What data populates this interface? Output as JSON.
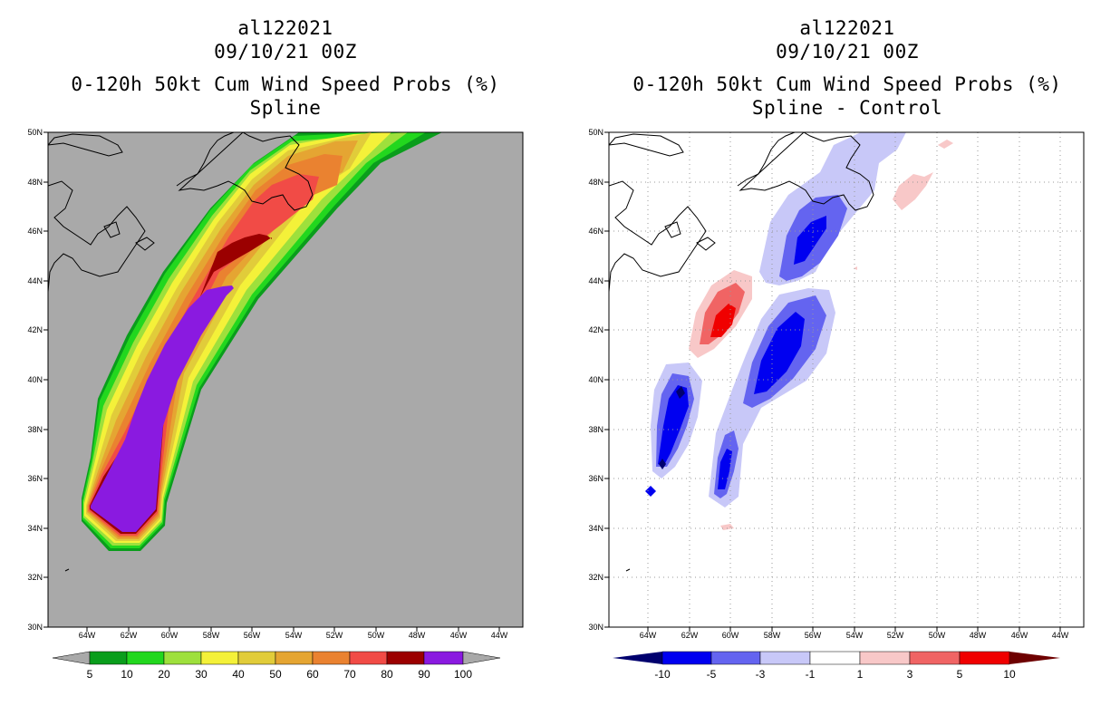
{
  "left_panel": {
    "title_lines": [
      "al122021",
      "09/10/21 00Z",
      "0-120h 50kt Cum Wind Speed Probs (%)",
      "Spline"
    ],
    "colorbar": {
      "labels": [
        "5",
        "10",
        "20",
        "30",
        "40",
        "50",
        "60",
        "70",
        "80",
        "90",
        "100"
      ],
      "colors": [
        "#a9a9a9",
        "#0a9d1c",
        "#22d71e",
        "#9ee03c",
        "#f4f139",
        "#e1cc3a",
        "#e5a532",
        "#ea8230",
        "#f14b46",
        "#9b0000",
        "#8a1ae0",
        "#a9a9a9"
      ]
    }
  },
  "right_panel": {
    "title_lines": [
      "al122021",
      "09/10/21 00Z",
      "0-120h 50kt Cum Wind Speed Probs (%)",
      "Spline - Control"
    ],
    "colorbar": {
      "labels": [
        "-10",
        "-5",
        "-3",
        "-1",
        "1",
        "3",
        "5",
        "10"
      ],
      "colors": [
        "#00006e",
        "#0000f0",
        "#6464f0",
        "#c8c8f8",
        "#ffffff",
        "#f8c8c8",
        "#f06464",
        "#f00000",
        "#6e0000"
      ]
    }
  },
  "axes": {
    "lat_labels": [
      "50N",
      "48N",
      "46N",
      "44N",
      "42N",
      "40N",
      "38N",
      "36N",
      "34N",
      "32N",
      "30N"
    ],
    "lon_labels": [
      "64W",
      "62W",
      "60W",
      "58W",
      "56W",
      "54W",
      "52W",
      "50W",
      "48W",
      "46W",
      "44W"
    ]
  }
}
